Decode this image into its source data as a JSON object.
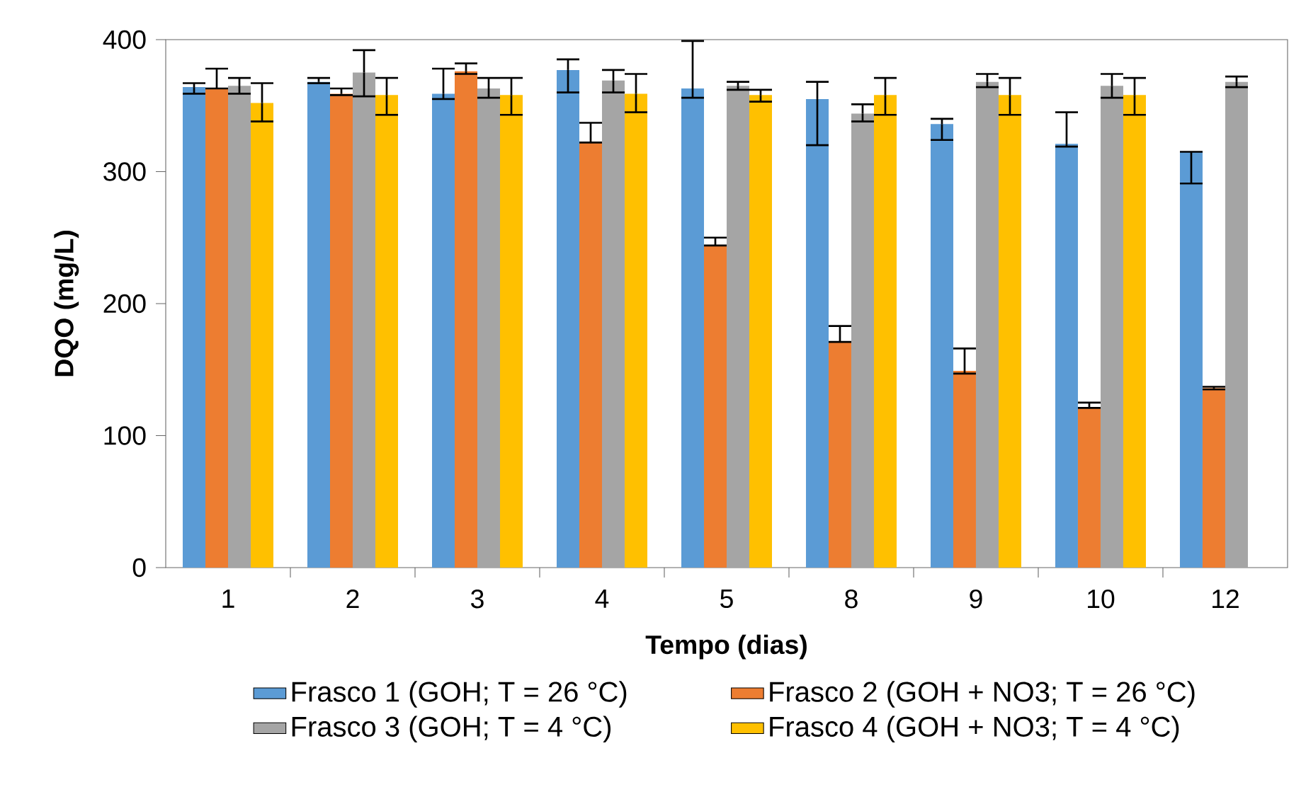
{
  "chart_data": {
    "type": "bar",
    "xlabel": "Tempo (dias)",
    "ylabel": "DQO (mg/L)",
    "categories": [
      "1",
      "2",
      "3",
      "4",
      "5",
      "8",
      "9",
      "10",
      "12"
    ],
    "series": [
      {
        "name": "Frasco 1 (GOH; T = 26 °C)",
        "color": "#5b9bd5",
        "values": [
          364,
          368,
          359,
          377,
          363,
          355,
          336,
          321,
          315
        ],
        "errors": [
          [
            359,
            367
          ],
          [
            367,
            371
          ],
          [
            355,
            378
          ],
          [
            360,
            385
          ],
          [
            356,
            399
          ],
          [
            320,
            368
          ],
          [
            324,
            340
          ],
          [
            319,
            345
          ],
          [
            291,
            315
          ]
        ]
      },
      {
        "name": "Frasco 2 (GOH + NO3; T = 26 °C)",
        "color": "#ed7d31",
        "values": [
          363,
          359,
          376,
          322,
          244,
          171,
          149,
          121,
          136
        ],
        "errors": [
          [
            363,
            378
          ],
          [
            358,
            363
          ],
          [
            374,
            382
          ],
          [
            322,
            337
          ],
          [
            244,
            250
          ],
          [
            171,
            183
          ],
          [
            147,
            166
          ],
          [
            121,
            125
          ],
          [
            135,
            137
          ]
        ]
      },
      {
        "name": "Frasco 3 (GOH; T = 4 °C)",
        "color": "#a5a5a5",
        "values": [
          365,
          375,
          363,
          369,
          365,
          344,
          368,
          365,
          368
        ],
        "errors": [
          [
            359,
            371
          ],
          [
            357,
            392
          ],
          [
            356,
            371
          ],
          [
            360,
            377
          ],
          [
            362,
            368
          ],
          [
            338,
            351
          ],
          [
            364,
            374
          ],
          [
            356,
            374
          ],
          [
            364,
            372
          ]
        ]
      },
      {
        "name": "Frasco 4 (GOH + NO3; T = 4 °C)",
        "color": "#ffc000",
        "values": [
          352,
          358,
          358,
          359,
          358,
          358,
          358,
          358,
          null
        ],
        "errors": [
          [
            338,
            367
          ],
          [
            343,
            371
          ],
          [
            343,
            371
          ],
          [
            345,
            374
          ],
          [
            353,
            362
          ],
          [
            343,
            371
          ],
          [
            343,
            371
          ],
          [
            343,
            371
          ],
          null
        ]
      }
    ],
    "ylim": [
      0,
      400
    ],
    "yticks": [
      0,
      100,
      200,
      300,
      400
    ],
    "grid": false,
    "legend": "bottom"
  }
}
